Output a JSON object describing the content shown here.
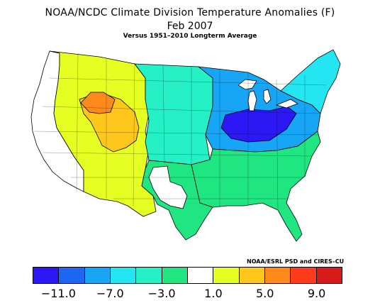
{
  "title": "NOAA/NCDC Climate Division Temperature Anomalies (F)",
  "date": "Feb 2007",
  "subtitle": "Versus 1951–2010 Longterm Average",
  "credit": "NOAA/ESRL PSD and CIRES–CU",
  "legend": {
    "colors": [
      "#2b18f5",
      "#1c66f2",
      "#16a6f5",
      "#24e6f2",
      "#25f0c6",
      "#1fe680",
      "#ffffff",
      "#e6ff22",
      "#ffc71c",
      "#ff8a1c",
      "#ff3b1b",
      "#d81b1a"
    ],
    "ticks": [
      "−11.0",
      "−7.0",
      "−3.0",
      "1.0",
      "5.0",
      "9.0"
    ]
  },
  "regions": [
    {
      "name": "northeast",
      "color": "#24e6f2"
    },
    {
      "name": "ohio-valley",
      "color": "#2b18f5"
    },
    {
      "name": "midwest",
      "color": "#16a6f5"
    },
    {
      "name": "southeast",
      "color": "#1fe680"
    },
    {
      "name": "texas",
      "color": "#1fe680"
    },
    {
      "name": "great-plains",
      "color": "#25f0c6"
    },
    {
      "name": "west",
      "color": "#e6ff22"
    },
    {
      "name": "great-basin",
      "color": "#ffc71c"
    },
    {
      "name": "northern-rockies",
      "color": "#ff8a1c"
    },
    {
      "name": "pacific",
      "color": "#ffffff"
    }
  ]
}
